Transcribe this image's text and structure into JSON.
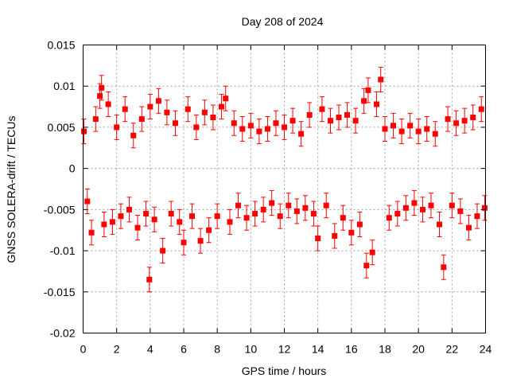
{
  "chart_data": {
    "type": "scatter",
    "title": "Day 208 of 2024",
    "xlabel": "GPS time / hours",
    "ylabel": "GNSS SOLERA-drift / TECUs",
    "xlim": [
      0,
      24
    ],
    "ylim": [
      -0.02,
      0.015
    ],
    "xticks": [
      0,
      2,
      4,
      6,
      8,
      10,
      12,
      14,
      16,
      18,
      20,
      22,
      24
    ],
    "xtick_labels": [
      "0",
      "2",
      "4",
      "6",
      "8",
      "10",
      "12",
      "14",
      "16",
      "18",
      "20",
      "22",
      "24"
    ],
    "yticks": [
      -0.02,
      -0.015,
      -0.01,
      -0.005,
      0,
      0.005,
      0.01,
      0.015
    ],
    "ytick_labels": [
      "-0.02",
      "-0.015",
      "-0.01",
      "-0.005",
      "0",
      "0.005",
      "0.01",
      "0.015"
    ],
    "grid": true,
    "series_color": "#ff0000",
    "marker": "square",
    "error_bars": true,
    "series": [
      {
        "x": [
          0.05,
          0.25,
          0.5,
          0.75,
          1.0,
          1.1,
          1.25,
          1.5,
          1.75,
          2.0,
          2.25,
          2.5,
          2.75,
          3.0,
          3.25,
          3.5,
          3.75,
          3.95,
          4.0,
          4.25,
          4.5,
          4.75,
          5.0,
          5.25,
          5.5,
          5.75,
          6.0,
          6.25,
          6.5,
          6.75,
          7.0,
          7.25,
          7.5,
          7.75,
          8.0,
          8.25,
          8.5,
          8.75,
          9.0,
          9.25,
          9.5,
          9.75,
          10.0,
          10.25,
          10.5,
          10.75,
          11.0,
          11.25,
          11.5,
          11.75,
          12.0,
          12.25,
          12.5,
          12.75,
          13.0,
          13.25,
          13.5,
          13.75,
          14.0,
          14.25,
          14.5,
          14.75,
          15.0,
          15.25,
          15.5,
          15.75,
          16.0,
          16.25,
          16.5,
          16.75,
          16.9,
          17.0,
          17.25,
          17.5,
          17.75,
          18.0,
          18.25,
          18.5,
          18.75,
          19.0,
          19.25,
          19.5,
          19.75,
          20.0,
          20.25,
          20.5,
          20.75,
          21.0,
          21.25,
          21.5,
          21.75,
          22.0,
          22.25,
          22.5,
          22.75,
          23.0,
          23.25,
          23.5,
          23.75,
          23.95
        ],
        "y": [
          0.0045,
          -0.004,
          -0.0078,
          0.006,
          0.0088,
          0.0098,
          -0.0068,
          0.0078,
          -0.0065,
          0.005,
          -0.0058,
          0.0072,
          -0.005,
          0.004,
          -0.0072,
          0.006,
          -0.0055,
          -0.0135,
          0.0075,
          -0.0062,
          0.0082,
          -0.01,
          0.0068,
          -0.0055,
          0.0055,
          -0.0065,
          -0.009,
          0.0072,
          -0.0058,
          0.005,
          -0.0088,
          0.0068,
          -0.0075,
          0.0062,
          -0.0058,
          0.0075,
          0.0085,
          -0.0065,
          0.0055,
          -0.0045,
          0.0048,
          -0.006,
          0.0052,
          -0.0055,
          0.0045,
          -0.005,
          0.0048,
          -0.0042,
          0.0055,
          -0.0058,
          0.005,
          -0.0045,
          0.0058,
          -0.0052,
          0.0042,
          -0.0048,
          0.0065,
          -0.0055,
          -0.0085,
          0.0072,
          -0.0045,
          0.0058,
          -0.0082,
          0.0062,
          -0.006,
          0.0065,
          -0.0078,
          0.0058,
          -0.0068,
          0.0082,
          -0.0118,
          0.0095,
          -0.0102,
          0.0078,
          0.0108,
          0.0048,
          -0.006,
          0.0052,
          -0.0055,
          0.0045,
          -0.0048,
          0.0052,
          -0.0042,
          0.0045,
          -0.005,
          0.0048,
          -0.0045,
          0.0042,
          -0.0068,
          -0.012,
          0.006,
          -0.0045,
          0.0055,
          -0.0052,
          0.0058,
          -0.0072,
          0.0062,
          -0.0058,
          0.0072,
          -0.0048
        ],
        "yerr": 0.0015
      }
    ]
  }
}
